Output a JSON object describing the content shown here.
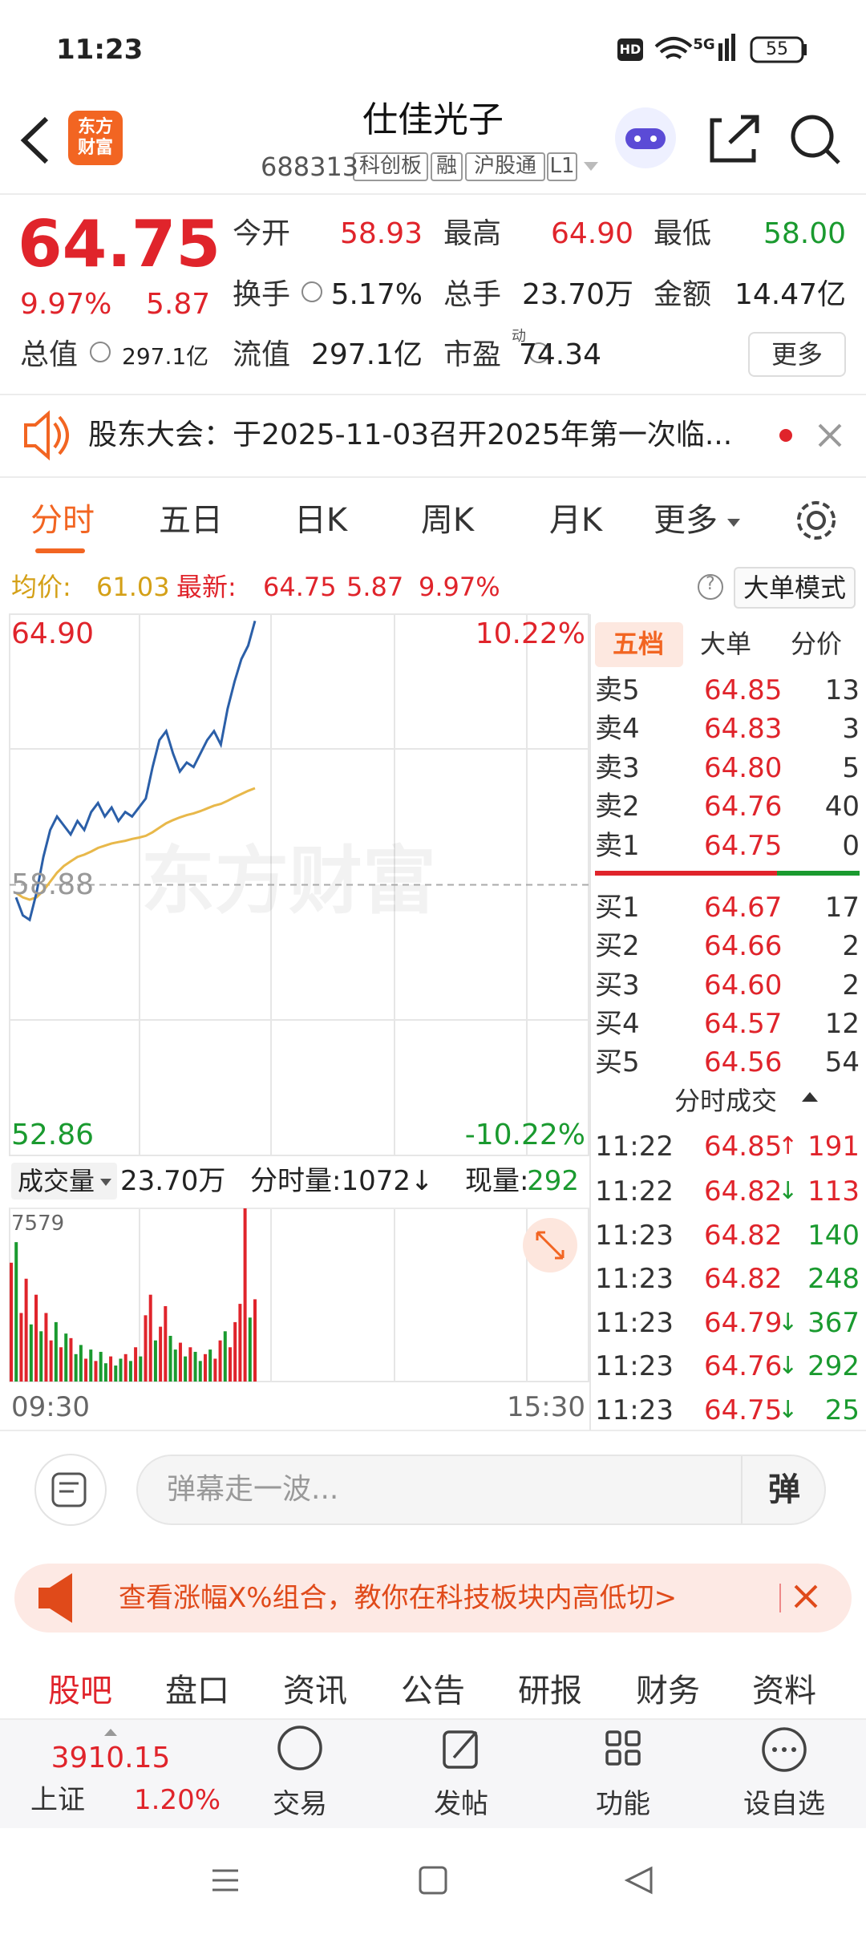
{
  "status": {
    "time": "11:23",
    "battery": "55",
    "network": "5G",
    "hd": "HD"
  },
  "header": {
    "logo": "东方财富",
    "title": "仕佳光子",
    "code": "688313",
    "tags": [
      "科创板",
      "融",
      "沪股通",
      "L1"
    ]
  },
  "quote": {
    "price": "64.75",
    "change_pct": "9.97%",
    "change": "5.87",
    "fields": [
      {
        "label": "今开",
        "value": "58.93"
      },
      {
        "label": "最高",
        "value": "64.90"
      },
      {
        "label": "最低",
        "value": "58.00"
      },
      {
        "label": "换手",
        "value": "5.17%"
      },
      {
        "label": "总手",
        "value": "23.70万"
      },
      {
        "label": "金额",
        "value": "14.47亿"
      },
      {
        "label": "总值",
        "value": "297.1亿"
      },
      {
        "label": "流值",
        "value": "297.1亿"
      },
      {
        "label": "市盈",
        "value": "74.34"
      }
    ],
    "pe_sup": "动",
    "more": "更多"
  },
  "notice": "股东大会：于2025-11-03召开2025年第一次临...",
  "tabs": [
    "分时",
    "五日",
    "日K",
    "周K",
    "月K",
    "更多"
  ],
  "info": {
    "avg_label": "均价:",
    "avg": "61.03",
    "last_label": "最新:",
    "last": "64.75",
    "change": "5.87",
    "pct": "9.97%",
    "mode": "大单模式"
  },
  "chart": {
    "type": "line",
    "ylim": [
      52.86,
      64.9
    ],
    "yticks": [
      52.86,
      {
        "value": 58.88,
        "label": "58.88"
      },
      {
        "value": 64.9,
        "label": "64.90"
      }
    ],
    "top_pct": "10.22%",
    "bottom_pct": "-10.22%",
    "price": [
      58.6,
      58.2,
      58.1,
      58.7,
      59.5,
      60.1,
      60.4,
      60.2,
      60.0,
      60.3,
      60.1,
      60.5,
      60.7,
      60.4,
      60.6,
      60.3,
      60.5,
      60.4,
      60.6,
      60.8,
      61.5,
      62.1,
      62.3,
      61.8,
      61.4,
      61.6,
      61.5,
      61.8,
      62.1,
      62.3,
      62.0,
      62.8,
      63.4,
      63.9,
      64.2,
      64.75
    ],
    "avg": [
      58.7,
      58.6,
      58.55,
      58.6,
      58.75,
      58.95,
      59.15,
      59.3,
      59.4,
      59.5,
      59.55,
      59.62,
      59.7,
      59.75,
      59.8,
      59.83,
      59.86,
      59.9,
      59.93,
      59.97,
      60.05,
      60.15,
      60.25,
      60.32,
      60.38,
      60.43,
      60.47,
      60.52,
      60.58,
      60.64,
      60.68,
      60.75,
      60.83,
      60.9,
      60.97,
      61.03
    ],
    "price_color": "#2b5fa8",
    "avg_color": "#e8b84a",
    "x_start": "09:30",
    "x_end": "15:30",
    "volume_header": {
      "label": "成交量",
      "total": "23.70万",
      "period": "分时量:1072↓",
      "now_label": "现量:",
      "now": "292"
    },
    "volume_ylim": [
      0,
      7579
    ],
    "volume_yticks": [
      7579
    ],
    "volumes": [
      5200,
      6100,
      3000,
      4500,
      2500,
      3800,
      2200,
      3000,
      1800,
      2600,
      1500,
      2100,
      1900,
      1200,
      1600,
      1000,
      1400,
      900,
      1300,
      800,
      1100,
      700,
      1000,
      1200,
      900,
      1500,
      1100,
      2900,
      3800,
      1800,
      2400,
      3300,
      2000,
      1400,
      1700,
      1100,
      1500,
      1300,
      900,
      1200,
      1400,
      1000,
      1800,
      2200,
      1500,
      2600,
      3400,
      7579,
      2800,
      3600
    ],
    "volume_colors": [
      "#e0242b",
      "#1a9a2f",
      "#e0242b",
      "#e0242b",
      "#1a9a2f",
      "#e0242b",
      "#1a9a2f",
      "#e0242b",
      "#e0242b",
      "#1a9a2f",
      "#e0242b",
      "#1a9a2f",
      "#e0242b",
      "#1a9a2f",
      "#1a9a2f",
      "#e0242b",
      "#1a9a2f",
      "#e0242b",
      "#1a9a2f",
      "#1a9a2f",
      "#e0242b",
      "#1a9a2f",
      "#1a9a2f",
      "#e0242b",
      "#1a9a2f",
      "#e0242b",
      "#1a9a2f",
      "#e0242b",
      "#e0242b",
      "#1a9a2f",
      "#e0242b",
      "#e0242b",
      "#1a9a2f",
      "#1a9a2f",
      "#e0242b",
      "#1a9a2f",
      "#e0242b",
      "#1a9a2f",
      "#1a9a2f",
      "#e0242b",
      "#1a9a2f",
      "#e0242b",
      "#e0242b",
      "#1a9a2f",
      "#e0242b",
      "#e0242b",
      "#e0242b",
      "#e0242b",
      "#1a9a2f",
      "#e0242b"
    ]
  },
  "order_book": {
    "tabs": [
      "五档",
      "大单",
      "分价"
    ],
    "asks": [
      [
        "卖5",
        "64.85",
        "13"
      ],
      [
        "卖4",
        "64.83",
        "3"
      ],
      [
        "卖3",
        "64.80",
        "5"
      ],
      [
        "卖2",
        "64.76",
        "40"
      ],
      [
        "卖1",
        "64.75",
        "0"
      ]
    ],
    "bids": [
      [
        "买1",
        "64.67",
        "17"
      ],
      [
        "买2",
        "64.66",
        "2"
      ],
      [
        "买3",
        "64.60",
        "2"
      ],
      [
        "买4",
        "64.57",
        "12"
      ],
      [
        "买5",
        "64.56",
        "54"
      ]
    ]
  },
  "trades": {
    "title": "分时成交",
    "rows": [
      [
        "11:22",
        "64.85",
        "↑",
        "191"
      ],
      [
        "11:22",
        "64.82",
        "↓",
        "113"
      ],
      [
        "11:23",
        "64.82",
        "",
        "140"
      ],
      [
        "11:23",
        "64.82",
        "",
        "248"
      ],
      [
        "11:23",
        "64.79",
        "↓",
        "367"
      ],
      [
        "11:23",
        "64.76",
        "↓",
        "292"
      ],
      [
        "11:23",
        "64.75",
        "↓",
        "25"
      ]
    ],
    "colors": [
      "#e0242b",
      "#e0242b",
      "#1a9a2f",
      "#1a9a2f",
      "#1a9a2f",
      "#1a9a2f",
      "#1a9a2f"
    ]
  },
  "comment": {
    "placeholder": "弹幕走一波...",
    "button": "弹"
  },
  "banner": "查看涨幅X%组合，教你在科技板块内高低切>",
  "bottom_tabs": [
    "股吧",
    "盘口",
    "资讯",
    "公告",
    "研报",
    "财务",
    "资料"
  ],
  "bottom_bar": {
    "index_value": "3910.15",
    "index_name": "上证",
    "index_pct": "1.20%",
    "buttons": [
      "交易",
      "发帖",
      "功能",
      "设自选"
    ]
  }
}
